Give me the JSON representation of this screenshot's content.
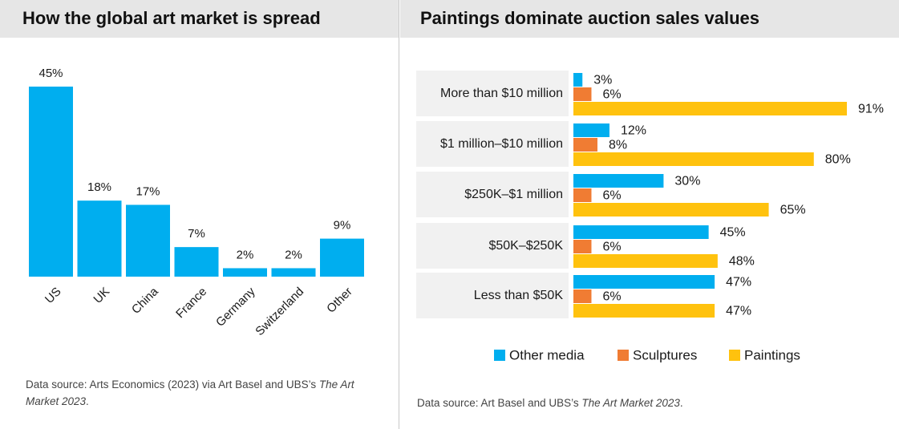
{
  "left": {
    "title": "How the global art market is spread",
    "source_prefix": "Data source: Arts Economics (2023) via Art Basel and UBS’s ",
    "source_italic": "The Art Market 2023",
    "source_suffix": "."
  },
  "right": {
    "title": "Paintings dominate auction sales values",
    "source_prefix": "Data source: Art Basel and UBS’s ",
    "source_italic": "The Art Market 2023",
    "source_suffix": "."
  },
  "chart_data": [
    {
      "type": "bar",
      "title": "How the global art market is spread",
      "categories": [
        "US",
        "UK",
        "China",
        "France",
        "Germany",
        "Switzerland",
        "Other"
      ],
      "values": [
        45,
        18,
        17,
        7,
        2,
        2,
        9
      ],
      "value_labels": [
        "45%",
        "18%",
        "17%",
        "7%",
        "2%",
        "2%",
        "9%"
      ],
      "ylim": [
        0,
        45
      ],
      "color": "#00aeef",
      "xlabel": "",
      "ylabel": ""
    },
    {
      "type": "bar",
      "orientation": "horizontal",
      "title": "Paintings dominate auction sales values",
      "categories": [
        "More than $10 million",
        "$1 million–$10 million",
        "$250K–$1 million",
        "$50K–$250K",
        "Less than $50K"
      ],
      "series": [
        {
          "name": "Other media",
          "color": "#00aeef",
          "values": [
            3,
            12,
            30,
            45,
            47
          ]
        },
        {
          "name": "Sculptures",
          "color": "#f07c33",
          "values": [
            6,
            8,
            6,
            6,
            6
          ]
        },
        {
          "name": "Paintings",
          "color": "#ffc20e",
          "values": [
            91,
            80,
            65,
            48,
            47
          ]
        }
      ],
      "xlim": [
        0,
        91
      ],
      "legend_position": "bottom"
    }
  ]
}
